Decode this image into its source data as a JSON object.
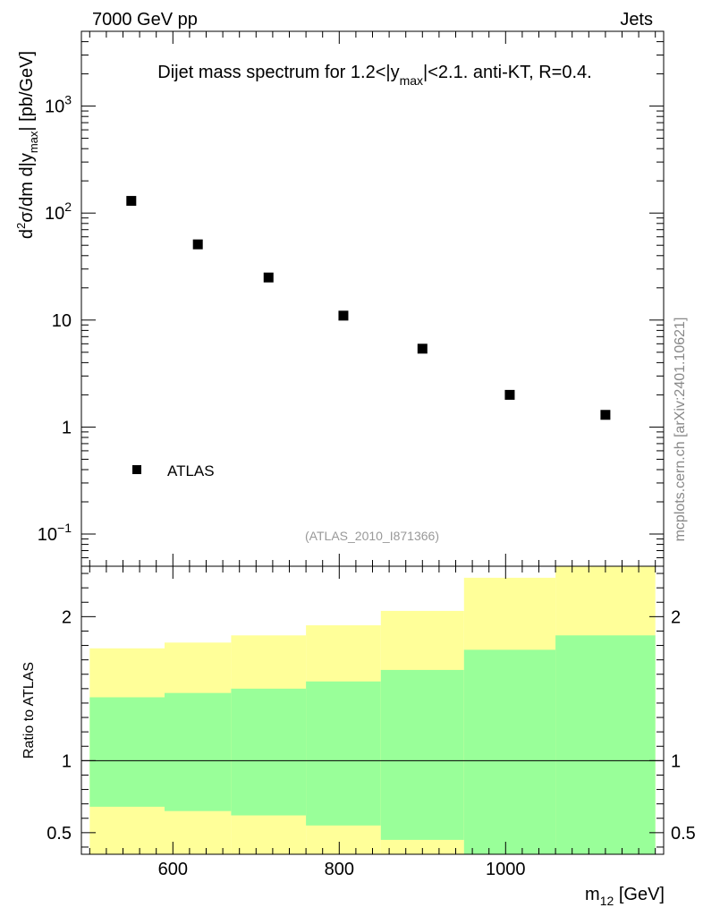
{
  "header": {
    "left": "7000 GeV pp",
    "right": "Jets"
  },
  "watermark": "mcplots.cern.ch [arXiv:2401.10621]",
  "chart_data": [
    {
      "type": "scatter",
      "panel": "main",
      "title": {
        "pre": "Dijet mass spectrum for 1.2<|y",
        "sub": "max",
        "post": "|<2.1.  anti-KT, R=0.4."
      },
      "ylabel": {
        "p1": "d",
        "sup": "2",
        "p2": "σ/dm d|y",
        "sub": "max",
        "p3": "| [pb/GeV]"
      },
      "yscale": "log",
      "ylim": [
        0.05,
        5000
      ],
      "yticks": [
        {
          "value": 0.1,
          "base": "10",
          "exp": "−1"
        },
        {
          "value": 1,
          "base": "1",
          "exp": ""
        },
        {
          "value": 10,
          "base": "10",
          "exp": ""
        },
        {
          "value": 100,
          "base": "10",
          "exp": "2"
        },
        {
          "value": 1000,
          "base": "10",
          "exp": "3"
        }
      ],
      "xlim": [
        490,
        1190
      ],
      "series": [
        {
          "name": "ATLAS",
          "x": [
            550,
            630,
            715,
            805,
            900,
            1005,
            1120
          ],
          "y": [
            130,
            51,
            25,
            11,
            5.4,
            2.0,
            1.3
          ]
        }
      ],
      "legend": "bottom-left",
      "annotation": "(ATLAS_2010_I871366)"
    },
    {
      "type": "area",
      "panel": "ratio",
      "ylabel": "Ratio to ATLAS",
      "ylim": [
        0.35,
        2.35
      ],
      "yticks": [
        {
          "value": 0.5,
          "label": "0.5"
        },
        {
          "value": 1,
          "label": "1"
        },
        {
          "value": 2,
          "label": "2"
        }
      ],
      "xlim": [
        490,
        1190
      ],
      "xlabel": {
        "pre": "m",
        "sub": "12",
        "post": " [GeV]"
      },
      "xticks": [
        {
          "value": 600,
          "label": "600"
        },
        {
          "value": 800,
          "label": "800"
        },
        {
          "value": 1000,
          "label": "1000"
        }
      ],
      "bins": [
        {
          "lo": 500,
          "hi": 590,
          "green": [
            0.68,
            1.44
          ],
          "yellow": [
            0.35,
            1.78
          ]
        },
        {
          "lo": 590,
          "hi": 670,
          "green": [
            0.65,
            1.47
          ],
          "yellow": [
            0.35,
            1.82
          ]
        },
        {
          "lo": 670,
          "hi": 760,
          "green": [
            0.62,
            1.5
          ],
          "yellow": [
            0.35,
            1.87
          ]
        },
        {
          "lo": 760,
          "hi": 850,
          "green": [
            0.55,
            1.55
          ],
          "yellow": [
            0.35,
            1.94
          ]
        },
        {
          "lo": 850,
          "hi": 950,
          "green": [
            0.45,
            1.63
          ],
          "yellow": [
            0.35,
            2.04
          ]
        },
        {
          "lo": 950,
          "hi": 1060,
          "green": [
            0.35,
            1.77
          ],
          "yellow": [
            0.35,
            2.27
          ]
        },
        {
          "lo": 1060,
          "hi": 1180,
          "green": [
            0.35,
            1.87
          ],
          "yellow": [
            0.35,
            2.35
          ]
        }
      ],
      "reference_line": 1.0
    }
  ],
  "colors": {
    "yellow_band": "#ffff99",
    "green_band": "#99ff99",
    "marker": "#000000",
    "axis": "#000000",
    "annotation": "#999999",
    "watermark": "#888888"
  }
}
